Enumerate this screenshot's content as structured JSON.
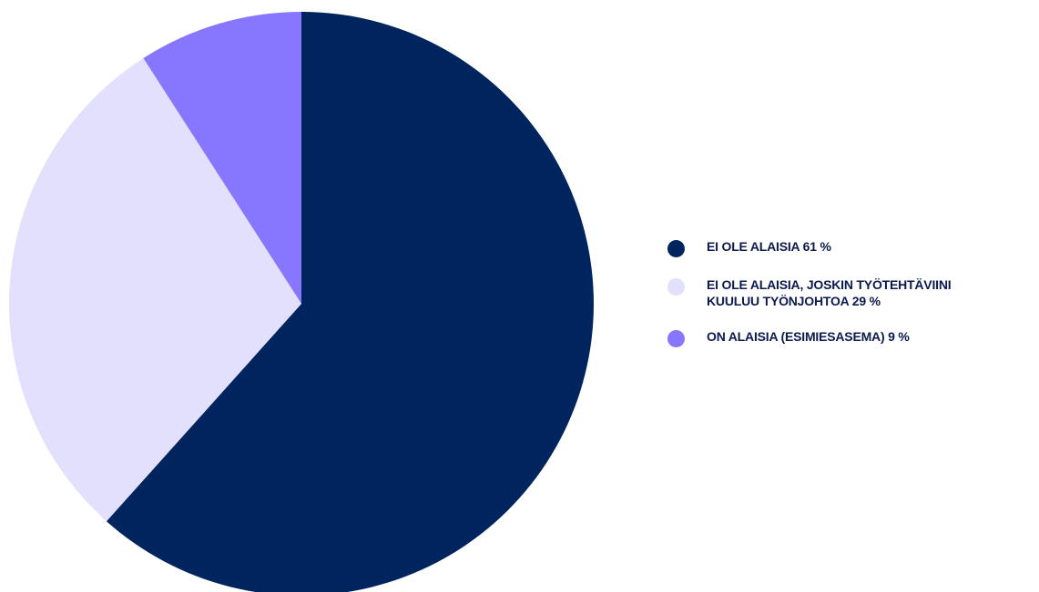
{
  "chart_data": {
    "type": "pie",
    "slices": [
      {
        "label": "EI OLE ALAISIA 61 %",
        "value": 61,
        "color": "#00255e"
      },
      {
        "label": "EI OLE ALAISIA, JOSKIN TYÖTEHTÄVIINI\nKUULUU TYÖNJOHTOA 29 %",
        "value": 29,
        "color": "#e2e0fd"
      },
      {
        "label": "ON ALAISIA (ESIMIESASEMA) 9 %",
        "value": 9,
        "color": "#8777fe"
      }
    ],
    "legend_position": "right"
  }
}
